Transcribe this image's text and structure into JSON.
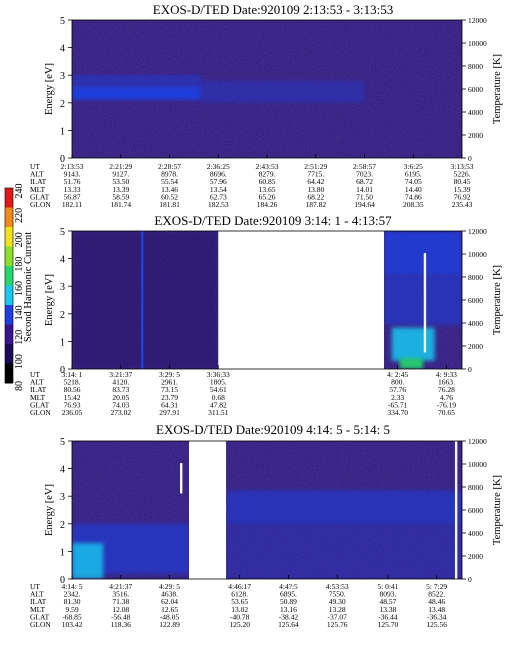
{
  "colors": {
    "background": "#2a1573",
    "deep_purple": "#1a0a4f",
    "blue": "#1f3fe0",
    "cyan": "#18c8f0",
    "green": "#23d96b",
    "white_streak": "#f5f5f5",
    "colorbar": [
      "#000000",
      "#1b0a55",
      "#3b1590",
      "#1f3fe0",
      "#18c8f0",
      "#23d96b",
      "#8ae02a",
      "#f2e21a",
      "#f28a1a",
      "#e01818"
    ]
  },
  "colorbar": {
    "label": "Second Harmonic Current",
    "ticks": [
      "80",
      "100",
      "120",
      "140",
      "160",
      "180",
      "200",
      "220",
      "240"
    ]
  },
  "chart_data": [
    {
      "type": "heatmap",
      "title": "EXOS-D/TED   Date:920109  2:13:53 - 3:13:53",
      "xlabel": "",
      "ylabel": "Energy [eV]",
      "ylabel_right": "Temperature [K]",
      "ylim": [
        0,
        5
      ],
      "y_ticks": [
        "0",
        "1",
        "2",
        "3",
        "4",
        "5"
      ],
      "ylim_right": [
        0,
        12000
      ],
      "y_right_ticks": [
        "0",
        "2000",
        "4000",
        "6000",
        "8000",
        "10000",
        "12000"
      ],
      "gap": null,
      "features": [
        {
          "kind": "band",
          "x0": 0.0,
          "x1": 0.33,
          "e0": 2.1,
          "e1": 2.6,
          "color": "blue",
          "opacity": 0.95
        },
        {
          "kind": "band",
          "x0": 0.0,
          "x1": 0.33,
          "e0": 2.6,
          "e1": 3.0,
          "color": "blue",
          "opacity": 0.5
        },
        {
          "kind": "band",
          "x0": 0.33,
          "x1": 0.75,
          "e0": 2.0,
          "e1": 2.8,
          "color": "blue",
          "opacity": 0.35
        }
      ],
      "orbit_table": {
        "labels": [
          "UT",
          "ALT",
          "ILAT",
          "MLT",
          "GLAT",
          "GLON"
        ],
        "columns": [
          {
            "pos": 0.0,
            "values": [
              "2:13:53",
              "9143.",
              "51.76",
              "13.33",
              "56.87",
              "182.11"
            ]
          },
          {
            "pos": 0.125,
            "values": [
              "2:21:29",
              "9127.",
              "53.50",
              "13.39",
              "58.59",
              "181.74"
            ]
          },
          {
            "pos": 0.25,
            "values": [
              "2:28:57",
              "8978.",
              "55.54",
              "13.46",
              "60.52",
              "181.81"
            ]
          },
          {
            "pos": 0.375,
            "values": [
              "2:36:25",
              "8696.",
              "57.96",
              "13.54",
              "62.73",
              "182.53"
            ]
          },
          {
            "pos": 0.5,
            "values": [
              "2:43:53",
              "8279.",
              "60.85",
              "13.65",
              "65.26",
              "184.26"
            ]
          },
          {
            "pos": 0.625,
            "values": [
              "2:51:29",
              "7715.",
              "64.42",
              "13.80",
              "68.22",
              "187.82"
            ]
          },
          {
            "pos": 0.75,
            "values": [
              "2:58:57",
              "7023.",
              "68.72",
              "14.01",
              "71.50",
              "194.64"
            ]
          },
          {
            "pos": 0.875,
            "values": [
              "3:6:25",
              "6195.",
              "74.05",
              "14.40",
              "74.86",
              "208.35"
            ]
          },
          {
            "pos": 1.0,
            "values": [
              "3:13:53",
              "5226.",
              "80.45",
              "15.39",
              "76.92",
              "235.43"
            ]
          }
        ]
      }
    },
    {
      "type": "heatmap",
      "title": "EXOS-D/TED   Date:920109  3:14: 1 - 4:13:57",
      "xlabel": "",
      "ylabel": "Energy [eV]",
      "ylabel_right": "Temperature [K]",
      "ylim": [
        0,
        5
      ],
      "y_ticks": [
        "0",
        "1",
        "2",
        "3",
        "4",
        "5"
      ],
      "ylim_right": [
        0,
        12000
      ],
      "y_right_ticks": [
        "0",
        "2000",
        "4000",
        "6000",
        "8000",
        "10000",
        "12000"
      ],
      "gap": [
        0.375,
        0.8
      ],
      "features": [
        {
          "kind": "band",
          "x0": 0.0,
          "x1": 0.375,
          "e0": 0.0,
          "e1": 5.0,
          "color": "deep_purple",
          "opacity": 0.35
        },
        {
          "kind": "band",
          "x0": 0.8,
          "x1": 1.0,
          "e0": 3.4,
          "e1": 5.0,
          "color": "blue",
          "opacity": 0.8
        },
        {
          "kind": "band",
          "x0": 0.8,
          "x1": 1.0,
          "e0": 1.6,
          "e1": 3.4,
          "color": "blue",
          "opacity": 0.55
        },
        {
          "kind": "band",
          "x0": 0.82,
          "x1": 0.93,
          "e0": 0.3,
          "e1": 1.5,
          "color": "cyan",
          "opacity": 0.85
        },
        {
          "kind": "band",
          "x0": 0.84,
          "x1": 0.9,
          "e0": 0.0,
          "e1": 0.4,
          "color": "green",
          "opacity": 0.9
        },
        {
          "kind": "vline",
          "x": 0.18,
          "e0": 0.0,
          "e1": 5.0,
          "color": "blue"
        },
        {
          "kind": "vline",
          "x": 0.905,
          "e0": 0.6,
          "e1": 4.2,
          "color": "white_streak"
        }
      ],
      "orbit_table": {
        "labels": [
          "UT",
          "ALT",
          "ILAT",
          "MLT",
          "GLAT",
          "GLON"
        ],
        "columns": [
          {
            "pos": 0.0,
            "values": [
              "3:14: 1",
              "5218.",
              "80.56",
              "15.42",
              "76.93",
              "236.05"
            ]
          },
          {
            "pos": 0.125,
            "values": [
              "3:21:37",
              "4120.",
              "83.73",
              "20.05",
              "74.03",
              "273.02"
            ]
          },
          {
            "pos": 0.25,
            "values": [
              "3:29: 5",
              "2961.",
              "73.15",
              "23.79",
              "64.31",
              "297.91"
            ]
          },
          {
            "pos": 0.375,
            "values": [
              "3:36:33",
              "1805.",
              "54.61",
              "0.68",
              "47.82",
              "311.51"
            ]
          },
          {
            "pos": 0.835,
            "values": [
              "4: 2:45",
              "800.",
              "57.76",
              "2.33",
              "-65.71",
              "334.70"
            ]
          },
          {
            "pos": 0.96,
            "values": [
              "4: 9:33",
              "1663.",
              "76.28",
              "4.76",
              "-76.19",
              "70.65"
            ]
          }
        ]
      }
    },
    {
      "type": "heatmap",
      "title": "EXOS-D/TED   Date:920109  4:14: 5 - 5:14: 5",
      "xlabel": "",
      "ylabel": "Energy [eV]",
      "ylabel_right": "Temperature [K]",
      "ylim": [
        0,
        5
      ],
      "y_ticks": [
        "0",
        "1",
        "2",
        "3",
        "4",
        "5"
      ],
      "ylim_right": [
        0,
        12000
      ],
      "y_right_ticks": [
        "0",
        "2000",
        "4000",
        "6000",
        "8000",
        "10000",
        "12000"
      ],
      "gap": [
        0.3,
        0.395
      ],
      "features": [
        {
          "kind": "band",
          "x0": 0.0,
          "x1": 0.3,
          "e0": 0.2,
          "e1": 2.0,
          "color": "blue",
          "opacity": 0.6
        },
        {
          "kind": "band",
          "x0": 0.0,
          "x1": 0.08,
          "e0": 0.0,
          "e1": 1.3,
          "color": "cyan",
          "opacity": 0.8
        },
        {
          "kind": "band",
          "x0": 0.395,
          "x1": 1.0,
          "e0": 2.0,
          "e1": 3.2,
          "color": "blue",
          "opacity": 0.55
        },
        {
          "kind": "band",
          "x0": 0.395,
          "x1": 1.0,
          "e0": 0.0,
          "e1": 2.0,
          "color": "blue",
          "opacity": 0.3
        },
        {
          "kind": "vline",
          "x": 0.28,
          "e0": 3.1,
          "e1": 4.2,
          "color": "white_streak"
        },
        {
          "kind": "vline",
          "x": 0.985,
          "e0": 0.0,
          "e1": 5.0,
          "color": "white_streak"
        }
      ],
      "orbit_table": {
        "labels": [
          "UT",
          "ALT",
          "ILAT",
          "MLT",
          "GLAT",
          "GLON"
        ],
        "columns": [
          {
            "pos": 0.0,
            "values": [
              "4:14: 5",
              "2342.",
              "81.30",
              "9.59",
              "-68.85",
              "103.42"
            ]
          },
          {
            "pos": 0.125,
            "values": [
              "4:21:37",
              "3516.",
              "71.38",
              "12.08",
              "-56.48",
              "118.36"
            ]
          },
          {
            "pos": 0.25,
            "values": [
              "4:29: 5",
              "4638.",
              "62.04",
              "12.65",
              "-48.05",
              "122.89"
            ]
          },
          {
            "pos": 0.43,
            "values": [
              "4:46:17",
              "6128.",
              "53.65",
              "13.02",
              "-40.78",
              "125.20"
            ]
          },
          {
            "pos": 0.555,
            "values": [
              "4:4?:5",
              "6895.",
              "50.89",
              "13.16",
              "-38.42",
              "125.64"
            ]
          },
          {
            "pos": 0.68,
            "values": [
              "4:53:53",
              "7550.",
              "49.30",
              "13.28",
              "-37.07",
              "125.76"
            ]
          },
          {
            "pos": 0.81,
            "values": [
              "5: 0:41",
              "8093.",
              "48.57",
              "13.38",
              "-36.44",
              "125.70"
            ]
          },
          {
            "pos": 0.935,
            "values": [
              "5: 7:29",
              "8522.",
              "48.46",
              "13.48",
              "-36.34",
              "125.56"
            ]
          }
        ]
      }
    }
  ]
}
